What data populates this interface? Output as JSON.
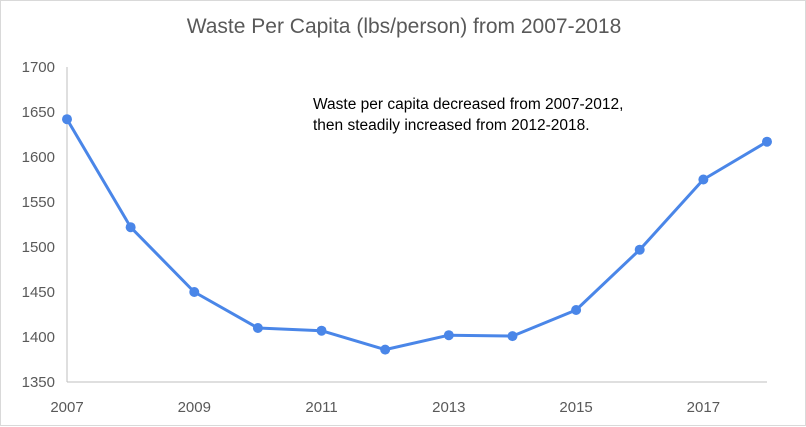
{
  "chart_data": {
    "type": "line",
    "title": "Waste Per Capita (lbs/person) from 2007-2018",
    "xlabel": "",
    "ylabel": "",
    "x": [
      2007,
      2008,
      2009,
      2010,
      2011,
      2012,
      2013,
      2014,
      2015,
      2016,
      2017,
      2018
    ],
    "x_tick_labels": [
      "2007",
      "2009",
      "2011",
      "2013",
      "2015",
      "2017"
    ],
    "y_tick_labels": [
      "1350",
      "1400",
      "1450",
      "1500",
      "1550",
      "1600",
      "1650",
      "1700"
    ],
    "ylim": [
      1350,
      1700
    ],
    "xlim": [
      2007,
      2018
    ],
    "series": [
      {
        "values": [
          1642,
          1522,
          1450,
          1410,
          1407,
          1386,
          1402,
          1401,
          1430,
          1497,
          1575,
          1617
        ],
        "color": "#4a86e8"
      }
    ],
    "annotation": "Waste per capita decreased from 2007-2012, then steadily increased from 2012-2018.",
    "grid": false,
    "legend": "none",
    "colors": {
      "line": "#4a86e8",
      "axis": "#bfbfbf",
      "text": "#595959"
    }
  }
}
